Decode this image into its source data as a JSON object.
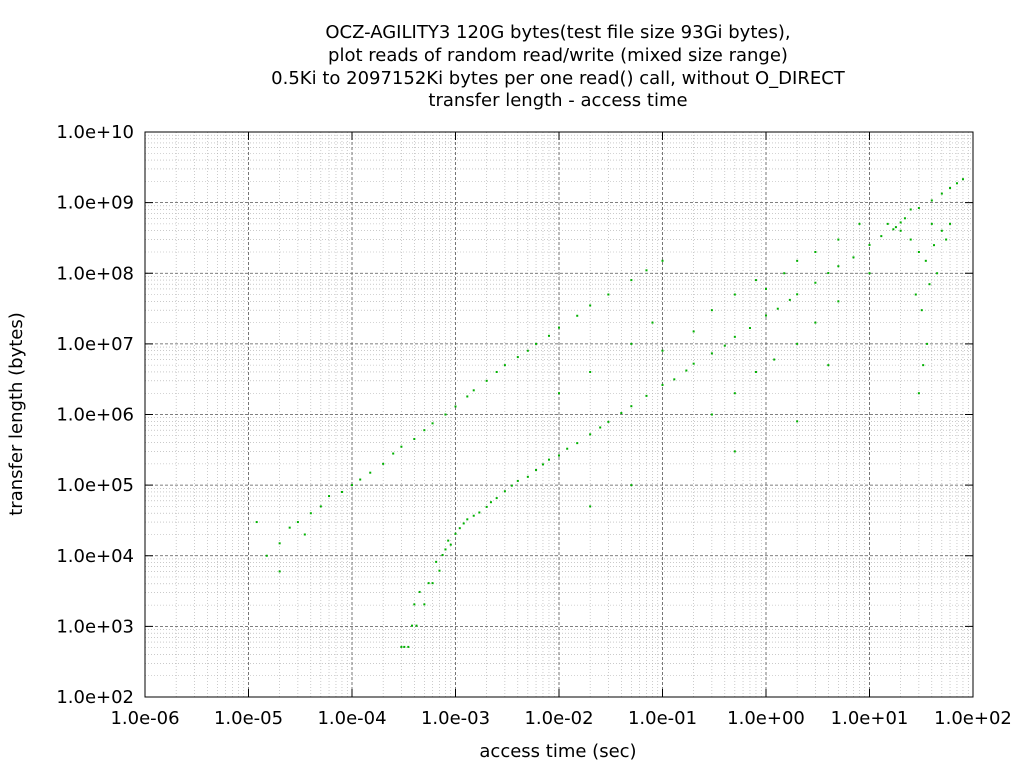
{
  "chart_data": {
    "type": "scatter",
    "title_lines": [
      "OCZ-AGILITY3 120G bytes(test file size 93Gi bytes),",
      "plot reads of random read/write (mixed size range)",
      "0.5Ki to 2097152Ki bytes per one read() call, without O_DIRECT",
      "transfer length - access time"
    ],
    "xlabel": "access time (sec)",
    "ylabel": "transfer length (bytes)",
    "x_scale": "log",
    "y_scale": "log",
    "xlim": [
      1e-06,
      100
    ],
    "ylim": [
      100,
      10000000000
    ],
    "x_tick_labels": [
      "1.0e-06",
      "1.0e-05",
      "1.0e-04",
      "1.0e-03",
      "1.0e-02",
      "1.0e-01",
      "1.0e+00",
      "1.0e+01",
      "1.0e+02"
    ],
    "y_tick_labels": [
      "1.0e+02",
      "1.0e+03",
      "1.0e+04",
      "1.0e+05",
      "1.0e+06",
      "1.0e+07",
      "1.0e+08",
      "1.0e+09",
      "1.0e+10"
    ],
    "grid": true,
    "point_color": "#00b000",
    "series": [
      {
        "name": "",
        "points": [
          [
            0.0003,
            512
          ],
          [
            0.00032,
            512
          ],
          [
            0.00035,
            512
          ],
          [
            0.00038,
            1024
          ],
          [
            0.0004,
            2048
          ],
          [
            0.00042,
            1024
          ],
          [
            0.00045,
            3072
          ],
          [
            0.0005,
            2048
          ],
          [
            0.00055,
            4096
          ],
          [
            0.0006,
            4096
          ],
          [
            0.00065,
            8192
          ],
          [
            0.0007,
            6144
          ],
          [
            0.00075,
            10240
          ],
          [
            0.0008,
            12288
          ],
          [
            0.00085,
            16384
          ],
          [
            0.0009,
            14336
          ],
          [
            0.001,
            20480
          ],
          [
            0.0011,
            24576
          ],
          [
            0.0012,
            28672
          ],
          [
            0.0013,
            32768
          ],
          [
            0.0015,
            36864
          ],
          [
            0.0017,
            40960
          ],
          [
            0.002,
            49152
          ],
          [
            0.0022,
            57344
          ],
          [
            0.0025,
            65536
          ],
          [
            0.003,
            81920
          ],
          [
            0.0035,
            98304
          ],
          [
            0.004,
            114688
          ],
          [
            0.005,
            131072
          ],
          [
            0.006,
            163840
          ],
          [
            0.007,
            196608
          ],
          [
            0.008,
            229376
          ],
          [
            0.01,
            262144
          ],
          [
            0.012,
            327680
          ],
          [
            0.015,
            393216
          ],
          [
            0.02,
            524288
          ],
          [
            0.025,
            655360
          ],
          [
            0.03,
            786432
          ],
          [
            0.04,
            1048576
          ],
          [
            0.05,
            1310720
          ],
          [
            0.07,
            1835008
          ],
          [
            0.1,
            2621440
          ],
          [
            0.13,
            3145728
          ],
          [
            0.17,
            4194304
          ],
          [
            0.2,
            5242880
          ],
          [
            0.3,
            7340032
          ],
          [
            0.4,
            9437184
          ],
          [
            0.5,
            12582912
          ],
          [
            0.7,
            16777216
          ],
          [
            1.0,
            25165824
          ],
          [
            1.3,
            31457280
          ],
          [
            1.7,
            41943040
          ],
          [
            2.0,
            50331648
          ],
          [
            3.0,
            73400320
          ],
          [
            4.0,
            100663296
          ],
          [
            5.0,
            125829120
          ],
          [
            7.0,
            167772160
          ],
          [
            10.0,
            251658240
          ],
          [
            13.0,
            335544320
          ],
          [
            17.0,
            419430400
          ],
          [
            20.0,
            524288000
          ],
          [
            30.0,
            838860800
          ],
          [
            40.0,
            1073741824
          ],
          [
            50.0,
            1342177280
          ],
          [
            60.0,
            1610612736
          ],
          [
            70.0,
            1879048192
          ],
          [
            80.0,
            2147483648
          ],
          [
            1.2e-05,
            30000
          ],
          [
            1.5e-05,
            10000
          ],
          [
            2e-05,
            6000
          ],
          [
            2e-05,
            15000
          ],
          [
            2.5e-05,
            25000
          ],
          [
            3e-05,
            30000
          ],
          [
            3.5e-05,
            20000
          ],
          [
            4e-05,
            40000
          ],
          [
            5e-05,
            50000
          ],
          [
            6e-05,
            70000
          ],
          [
            8e-05,
            80000
          ],
          [
            0.0001,
            100000
          ],
          [
            0.00012,
            120000
          ],
          [
            0.00015,
            150000
          ],
          [
            0.0002,
            200000
          ],
          [
            0.00025,
            280000
          ],
          [
            0.0003,
            350000
          ],
          [
            0.0004,
            450000
          ],
          [
            0.0005,
            600000
          ],
          [
            0.0006,
            750000
          ],
          [
            0.0008,
            1000000
          ],
          [
            0.001,
            1300000
          ],
          [
            0.0013,
            1800000
          ],
          [
            0.0015,
            2200000
          ],
          [
            0.002,
            3000000
          ],
          [
            0.0025,
            4000000
          ],
          [
            0.003,
            5000000
          ],
          [
            0.004,
            6500000
          ],
          [
            0.005,
            8000000
          ],
          [
            0.006,
            10000000
          ],
          [
            0.008,
            13000000
          ],
          [
            0.01,
            17000000
          ],
          [
            0.015,
            25000000
          ],
          [
            0.02,
            35000000
          ],
          [
            0.03,
            50000000
          ],
          [
            0.05,
            80000000
          ],
          [
            0.07,
            110000000
          ],
          [
            0.1,
            150000000
          ],
          [
            0.01,
            2000000
          ],
          [
            0.02,
            4000000
          ],
          [
            0.05,
            10000000
          ],
          [
            0.08,
            20000000
          ],
          [
            0.1,
            8000000
          ],
          [
            0.2,
            15000000
          ],
          [
            0.3,
            30000000
          ],
          [
            0.5,
            50000000
          ],
          [
            0.8,
            80000000
          ],
          [
            1.0,
            60000000
          ],
          [
            1.5,
            100000000
          ],
          [
            2.0,
            150000000
          ],
          [
            3.0,
            200000000
          ],
          [
            5.0,
            300000000
          ],
          [
            8.0,
            500000000
          ],
          [
            0.5,
            2000000
          ],
          [
            0.8,
            4000000
          ],
          [
            1.2,
            6000000
          ],
          [
            2.0,
            10000000
          ],
          [
            3.0,
            20000000
          ],
          [
            5.0,
            40000000
          ],
          [
            10.0,
            100000000
          ],
          [
            0.3,
            1000000
          ],
          [
            0.05,
            100000
          ],
          [
            0.02,
            50000
          ],
          [
            0.5,
            300000
          ],
          [
            2.0,
            800000
          ],
          [
            4.0,
            5000000
          ],
          [
            20.0,
            400000000
          ],
          [
            25.0,
            300000000
          ],
          [
            30.0,
            200000000
          ],
          [
            35.0,
            150000000
          ],
          [
            40.0,
            500000000
          ],
          [
            45.0,
            100000000
          ],
          [
            50.0,
            400000000
          ],
          [
            55.0,
            300000000
          ],
          [
            60.0,
            500000000
          ],
          [
            28.0,
            50000000
          ],
          [
            32.0,
            30000000
          ],
          [
            36.0,
            10000000
          ],
          [
            33.0,
            5000000
          ],
          [
            30.0,
            2000000
          ],
          [
            38.0,
            70000000
          ],
          [
            42.0,
            250000000
          ],
          [
            25.0,
            800000000
          ],
          [
            15.0,
            500000000
          ],
          [
            18.0,
            450000000
          ],
          [
            22.0,
            600000000
          ]
        ]
      }
    ]
  }
}
